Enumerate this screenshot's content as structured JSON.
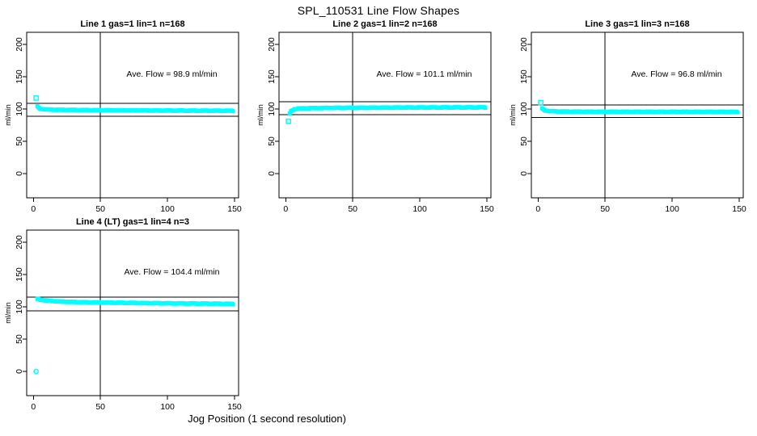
{
  "figure": {
    "title": "SPL_110531  Line Flow Shapes",
    "x_label": "Jog Position (1 second resolution)",
    "background_color": "#FFFFFF",
    "marker_color": "#00FFFF",
    "axis_color": "#000000"
  },
  "chart_data": [
    {
      "type": "scatter",
      "title": "Line 1 gas=1 lin=1 n=168",
      "annotation": "Ave. Flow =  98.9  ml/min",
      "ave_flow_ml_min": 98.9,
      "ylabel": "ml/min",
      "x_ticks": [
        0,
        50,
        100,
        150
      ],
      "y_ticks": [
        0,
        50,
        100,
        150,
        200
      ],
      "xlim": [
        -5,
        153
      ],
      "ylim": [
        -37.5,
        218.75
      ],
      "ref_lines_h": [
        108.8,
        89.0
      ],
      "ref_lines_v": [
        50
      ],
      "marker": "open-square",
      "marker_color": "#00FFFF",
      "outlier_points": [
        [
          2,
          117
        ]
      ],
      "band_points": [
        [
          3,
          104
        ],
        [
          4,
          101.5
        ],
        [
          6,
          100
        ],
        [
          10,
          99.2
        ],
        [
          20,
          98.7
        ],
        [
          40,
          98.3
        ],
        [
          60,
          98.0
        ],
        [
          80,
          97.8
        ],
        [
          100,
          97.6
        ],
        [
          120,
          97.4
        ],
        [
          149,
          97.2
        ]
      ]
    },
    {
      "type": "scatter",
      "title": "Line 2 gas=1 lin=2 n=168",
      "annotation": "Ave. Flow =  101.1  ml/min",
      "ave_flow_ml_min": 101.1,
      "ylabel": "ml/min",
      "x_ticks": [
        0,
        50,
        100,
        150
      ],
      "y_ticks": [
        0,
        50,
        100,
        150,
        200
      ],
      "xlim": [
        -5,
        153
      ],
      "ylim": [
        -37.5,
        218.75
      ],
      "ref_lines_h": [
        111.2,
        91.0
      ],
      "ref_lines_v": [
        50
      ],
      "marker": "open-square",
      "marker_color": "#00FFFF",
      "outlier_points": [
        [
          2,
          81
        ]
      ],
      "band_points": [
        [
          3,
          93
        ],
        [
          4,
          96.5
        ],
        [
          5,
          98.5
        ],
        [
          7,
          100
        ],
        [
          10,
          100.8
        ],
        [
          20,
          101.4
        ],
        [
          40,
          101.8
        ],
        [
          60,
          102.0
        ],
        [
          80,
          102.2
        ],
        [
          100,
          102.3
        ],
        [
          120,
          102.4
        ],
        [
          149,
          102.5
        ]
      ]
    },
    {
      "type": "scatter",
      "title": "Line 3 gas=1 lin=3 n=168",
      "annotation": "Ave. Flow =  96.8  ml/min",
      "ave_flow_ml_min": 96.8,
      "ylabel": "ml/min",
      "x_ticks": [
        0,
        50,
        100,
        150
      ],
      "y_ticks": [
        0,
        50,
        100,
        150,
        200
      ],
      "xlim": [
        -5,
        153
      ],
      "ylim": [
        -37.5,
        218.75
      ],
      "ref_lines_h": [
        106.5,
        87.1
      ],
      "ref_lines_v": [
        50
      ],
      "marker": "open-square",
      "marker_color": "#00FFFF",
      "outlier_points": [
        [
          2,
          110
        ]
      ],
      "band_points": [
        [
          3,
          101
        ],
        [
          4,
          99
        ],
        [
          6,
          97.5
        ],
        [
          10,
          96.5
        ],
        [
          20,
          96.0
        ],
        [
          40,
          95.8
        ],
        [
          60,
          95.7
        ],
        [
          100,
          95.6
        ],
        [
          149,
          95.5
        ]
      ]
    },
    {
      "type": "scatter",
      "title": "Line 4 (LT) gas=1 lin=4 n=3",
      "annotation": "Ave. Flow =  104.4  ml/min",
      "ave_flow_ml_min": 104.4,
      "ylabel": "ml/min",
      "x_ticks": [
        0,
        50,
        100,
        150
      ],
      "y_ticks": [
        0,
        50,
        100,
        150,
        200
      ],
      "xlim": [
        -5,
        153
      ],
      "ylim": [
        -37.5,
        218.75
      ],
      "ref_lines_h": [
        114.8,
        94.0
      ],
      "ref_lines_v": [
        50
      ],
      "marker": "open-circle",
      "marker_color": "#00FFFF",
      "outlier_points": [
        [
          2,
          0
        ]
      ],
      "band_points": [
        [
          3,
          112
        ],
        [
          5,
          111.2
        ],
        [
          8,
          110.2
        ],
        [
          12,
          109.3
        ],
        [
          20,
          108.2
        ],
        [
          30,
          107.4
        ],
        [
          50,
          106.6
        ],
        [
          70,
          106.1
        ],
        [
          90,
          105.6
        ],
        [
          110,
          105.2
        ],
        [
          130,
          104.9
        ],
        [
          149,
          104.5
        ]
      ]
    }
  ]
}
